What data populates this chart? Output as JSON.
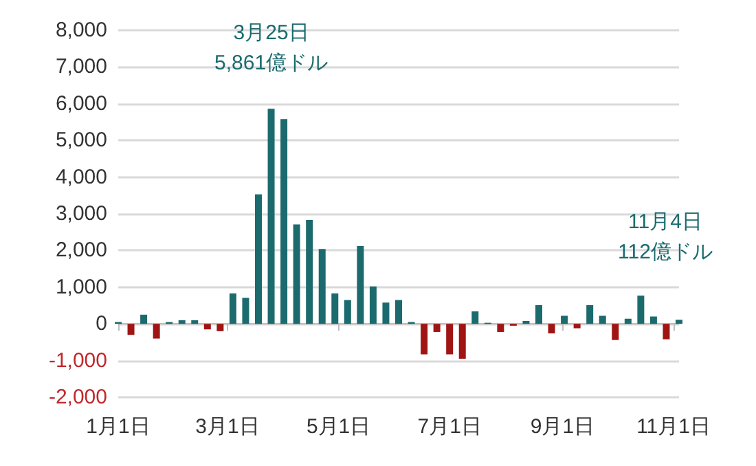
{
  "chart_data": {
    "type": "bar",
    "x": [
      "--01-01",
      "--01-08",
      "--01-15",
      "--01-22",
      "--01-29",
      "--02-05",
      "--02-12",
      "--02-19",
      "--02-26",
      "--03-04",
      "--03-11",
      "--03-18",
      "--03-25",
      "--04-01",
      "--04-08",
      "--04-15",
      "--04-22",
      "--04-29",
      "--05-06",
      "--05-13",
      "--05-20",
      "--05-27",
      "--06-03",
      "--06-10",
      "--06-17",
      "--06-24",
      "--07-01",
      "--07-08",
      "--07-15",
      "--07-22",
      "--07-29",
      "--08-05",
      "--08-12",
      "--08-19",
      "--08-26",
      "--09-02",
      "--09-09",
      "--09-16",
      "--09-23",
      "--09-30",
      "--10-07",
      "--10-14",
      "--10-21",
      "--10-28",
      "--11-04"
    ],
    "values": [
      50,
      -300,
      250,
      -400,
      50,
      100,
      100,
      -150,
      -200,
      830,
      710,
      3530,
      5861,
      5580,
      2710,
      2830,
      2040,
      830,
      650,
      2120,
      1020,
      580,
      650,
      50,
      -830,
      -220,
      -830,
      -950,
      340,
      30,
      -220,
      -50,
      80,
      510,
      -260,
      220,
      -120,
      510,
      220,
      -440,
      140,
      770,
      200,
      -420,
      112
    ],
    "colors": [
      "#1b6b6e",
      "#a01414",
      "#1b6b6e",
      "#a01414",
      "#1b6b6e",
      "#1b6b6e",
      "#1b6b6e",
      "#a01414",
      "#a01414",
      "#1b6b6e",
      "#1b6b6e",
      "#1b6b6e",
      "#1b6b6e",
      "#1b6b6e",
      "#1b6b6e",
      "#1b6b6e",
      "#1b6b6e",
      "#1b6b6e",
      "#1b6b6e",
      "#1b6b6e",
      "#1b6b6e",
      "#1b6b6e",
      "#1b6b6e",
      "#1b6b6e",
      "#a01414",
      "#a01414",
      "#a01414",
      "#a01414",
      "#1b6b6e",
      "#1b6b6e",
      "#a01414",
      "#a01414",
      "#1b6b6e",
      "#1b6b6e",
      "#a01414",
      "#1b6b6e",
      "#a01414",
      "#1b6b6e",
      "#1b6b6e",
      "#a01414",
      "#1b6b6e",
      "#1b6b6e",
      "#1b6b6e",
      "#a01414",
      "#1b6b6e"
    ],
    "xlim": [
      "--01-01",
      "--11-04"
    ],
    "xticks": [
      {
        "value": "--01-01",
        "label": "1月1日"
      },
      {
        "value": "--03-01",
        "label": "3月1日"
      },
      {
        "value": "--05-01",
        "label": "5月1日"
      },
      {
        "value": "--07-01",
        "label": "7月1日"
      },
      {
        "value": "--09-01",
        "label": "9月1日"
      },
      {
        "value": "--11-01",
        "label": "11月1日"
      }
    ],
    "ylim": [
      -2000,
      8000
    ],
    "yticks": [
      {
        "value": -2000,
        "label": "-2,000"
      },
      {
        "value": -1000,
        "label": "-1,000"
      },
      0,
      {
        "value": 1000,
        "label": "1,000"
      },
      {
        "value": 2000,
        "label": "2,000"
      },
      {
        "value": 3000,
        "label": "3,000"
      },
      {
        "value": 4000,
        "label": "4,000"
      },
      {
        "value": 5000,
        "label": "5,000"
      },
      {
        "value": 6000,
        "label": "6,000"
      },
      {
        "value": 7000,
        "label": "7,000"
      },
      {
        "value": 8000,
        "label": "8,000"
      }
    ],
    "grid": "y",
    "annotations": [
      {
        "text": "3月25日\n5,861億ドル",
        "x": "--03-25",
        "y": 5861
      },
      {
        "text": "11月4日\n112億ドル",
        "x": "--11-04",
        "y": 112
      }
    ]
  }
}
